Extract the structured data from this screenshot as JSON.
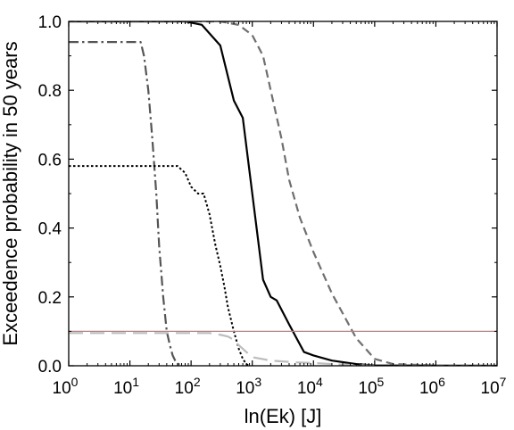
{
  "chart_data": {
    "type": "line",
    "title": "",
    "xlabel": "ln(Ek) [J]",
    "ylabel": "Exceedence probability in 50 years",
    "xscale": "log",
    "xlim": [
      1,
      10000000
    ],
    "ylim": [
      0,
      1
    ],
    "x_ticks": [
      {
        "value": 1,
        "base": "10",
        "exp": "0"
      },
      {
        "value": 10,
        "base": "10",
        "exp": "1"
      },
      {
        "value": 100,
        "base": "10",
        "exp": "2"
      },
      {
        "value": 1000,
        "base": "10",
        "exp": "3"
      },
      {
        "value": 10000,
        "base": "10",
        "exp": "4"
      },
      {
        "value": 100000,
        "base": "10",
        "exp": "5"
      },
      {
        "value": 1000000,
        "base": "10",
        "exp": "6"
      },
      {
        "value": 10000000,
        "base": "10",
        "exp": "7"
      }
    ],
    "y_ticks": [
      {
        "value": 0,
        "label": "0.0"
      },
      {
        "value": 0.2,
        "label": "0.2"
      },
      {
        "value": 0.4,
        "label": "0.4"
      },
      {
        "value": 0.6,
        "label": "0.6"
      },
      {
        "value": 0.8,
        "label": "0.8"
      },
      {
        "value": 1.0,
        "label": "1.0"
      }
    ],
    "grid": false,
    "reference_line": {
      "y": 0.1,
      "color": "#d9707a"
    },
    "series": [
      {
        "style": "dash-dot",
        "color": "#555555",
        "x": [
          1,
          15,
          17,
          20,
          23,
          27,
          30,
          35,
          40,
          45,
          50,
          55,
          60,
          65,
          70
        ],
        "y": [
          0.94,
          0.94,
          0.9,
          0.8,
          0.67,
          0.5,
          0.35,
          0.2,
          0.1,
          0.06,
          0.03,
          0.015,
          0.007,
          0.003,
          0.0
        ]
      },
      {
        "style": "dotted",
        "color": "#000000",
        "x": [
          1,
          60,
          80,
          100,
          130,
          160,
          200,
          250,
          300,
          350,
          400,
          500,
          600,
          700,
          800,
          900
        ],
        "y": [
          0.58,
          0.58,
          0.56,
          0.52,
          0.5,
          0.5,
          0.44,
          0.35,
          0.29,
          0.23,
          0.17,
          0.1,
          0.05,
          0.02,
          0.005,
          0.0
        ]
      },
      {
        "style": "solid",
        "color": "#000000",
        "x": [
          1,
          80,
          150,
          300,
          500,
          700,
          1000,
          1500,
          2000,
          2500,
          4000,
          7000,
          10000,
          20000,
          50000,
          100000,
          10000000
        ],
        "y": [
          1.0,
          1.0,
          0.99,
          0.93,
          0.77,
          0.72,
          0.5,
          0.25,
          0.2,
          0.19,
          0.12,
          0.04,
          0.03,
          0.015,
          0.005,
          0.001,
          0.0
        ]
      },
      {
        "style": "dashed",
        "color": "#6f6f6f",
        "x": [
          1,
          300,
          600,
          1000,
          1500,
          2000,
          3000,
          4000,
          6000,
          10000,
          20000,
          50000,
          100000,
          200000,
          1000000,
          10000000
        ],
        "y": [
          1.0,
          1.0,
          0.99,
          0.96,
          0.9,
          0.8,
          0.66,
          0.54,
          0.43,
          0.33,
          0.21,
          0.08,
          0.02,
          0.005,
          0.001,
          0.0
        ]
      },
      {
        "style": "long-dash",
        "color": "#bdbdbd",
        "x": [
          1,
          20,
          50,
          80,
          150,
          200,
          300,
          400,
          500,
          600,
          800,
          1000,
          2000,
          5000,
          10000,
          20000,
          50000,
          100000
        ],
        "y": [
          0.095,
          0.095,
          0.095,
          0.095,
          0.095,
          0.095,
          0.09,
          0.085,
          0.075,
          0.06,
          0.04,
          0.025,
          0.015,
          0.01,
          0.008,
          0.005,
          0.002,
          0.0
        ]
      }
    ]
  }
}
